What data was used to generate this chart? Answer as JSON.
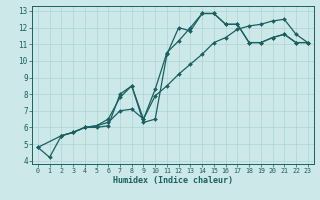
{
  "xlabel": "Humidex (Indice chaleur)",
  "bg_color": "#cce8e8",
  "line_color": "#1a6060",
  "grid_color": "#aad4d4",
  "xlim": [
    -0.5,
    23.5
  ],
  "ylim": [
    3.8,
    13.3
  ],
  "xticks": [
    0,
    1,
    2,
    3,
    4,
    5,
    6,
    7,
    8,
    9,
    10,
    11,
    12,
    13,
    14,
    15,
    16,
    17,
    18,
    19,
    20,
    21,
    22,
    23
  ],
  "yticks": [
    4,
    5,
    6,
    7,
    8,
    9,
    10,
    11,
    12,
    13
  ],
  "line1_x": [
    0,
    1,
    2,
    3,
    4,
    5,
    6,
    7,
    8,
    9,
    10,
    11,
    12,
    13,
    14,
    15,
    16,
    17,
    18,
    19,
    20,
    21,
    22,
    23
  ],
  "line1_y": [
    4.8,
    4.2,
    5.5,
    5.7,
    6.0,
    6.0,
    6.1,
    8.0,
    8.5,
    6.5,
    8.3,
    10.5,
    11.2,
    12.0,
    12.85,
    12.85,
    12.2,
    12.2,
    11.1,
    11.1,
    11.4,
    11.6,
    11.1,
    11.1
  ],
  "line2_x": [
    2,
    3,
    4,
    5,
    6,
    7,
    8,
    9,
    10,
    11,
    12,
    13,
    14,
    15,
    16,
    17,
    18,
    19,
    20,
    21,
    22,
    23
  ],
  "line2_y": [
    5.5,
    5.7,
    6.0,
    6.1,
    6.5,
    7.8,
    8.5,
    6.3,
    6.5,
    10.4,
    12.0,
    11.8,
    12.85,
    12.85,
    12.2,
    12.2,
    11.1,
    11.1,
    11.4,
    11.6,
    11.1,
    11.1
  ],
  "line3_x": [
    0,
    2,
    3,
    4,
    5,
    6,
    7,
    8,
    9,
    10,
    11,
    12,
    13,
    14,
    15,
    16,
    17,
    18,
    19,
    20,
    21,
    22,
    23
  ],
  "line3_y": [
    4.8,
    5.5,
    5.7,
    6.0,
    6.1,
    6.3,
    7.0,
    7.1,
    6.5,
    7.9,
    8.5,
    9.2,
    9.8,
    10.4,
    11.1,
    11.4,
    11.9,
    12.1,
    12.2,
    12.4,
    12.5,
    11.6,
    11.1
  ]
}
